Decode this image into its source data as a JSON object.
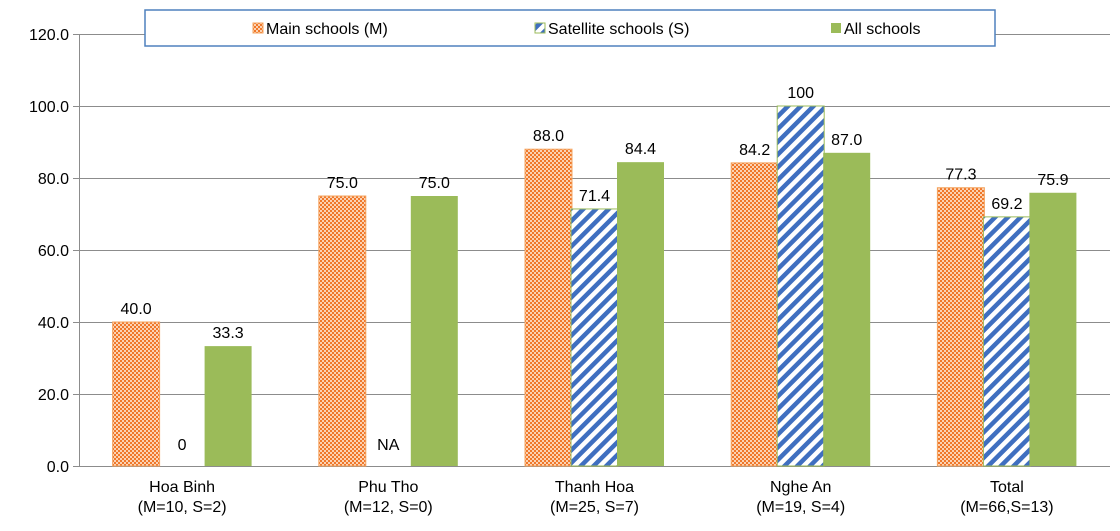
{
  "chart_data": {
    "type": "bar",
    "categories": [
      [
        "Hoa Binh",
        "(M=10, S=2)"
      ],
      [
        "Phu Tho",
        "(M=12, S=0)"
      ],
      [
        "Thanh Hoa",
        "(M=25, S=7)"
      ],
      [
        "Nghe An",
        "(M=19, S=4)"
      ],
      [
        "Total",
        "(M=66,S=13)"
      ]
    ],
    "series": [
      {
        "name": "Main schools (M)",
        "values": [
          40.0,
          75.0,
          88.0,
          84.2,
          77.3
        ],
        "labels": [
          "40.0",
          "75.0",
          "88.0",
          "84.2",
          "77.3"
        ],
        "color": "#f4a460",
        "pattern": "dotted-orange"
      },
      {
        "name": "Satellite schools (S)",
        "values": [
          0,
          null,
          71.4,
          100,
          69.2
        ],
        "labels": [
          "0",
          "NA",
          "71.4",
          "100",
          "69.2"
        ],
        "color": "#4472c4",
        "pattern": "diagonal-blue"
      },
      {
        "name": "All schools",
        "values": [
          33.3,
          75.0,
          84.4,
          87.0,
          75.9
        ],
        "labels": [
          "33.3",
          "75.0",
          "84.4",
          "87.0",
          "75.9"
        ],
        "color": "#9bbb59",
        "pattern": "solid"
      }
    ],
    "ylim": [
      0,
      120
    ],
    "yticks": [
      "0.0",
      "20.0",
      "40.0",
      "60.0",
      "80.0",
      "100.0",
      "120.0"
    ],
    "ytick_values": [
      0,
      20,
      40,
      60,
      80,
      100,
      120
    ],
    "grid": true,
    "legend": "top"
  }
}
